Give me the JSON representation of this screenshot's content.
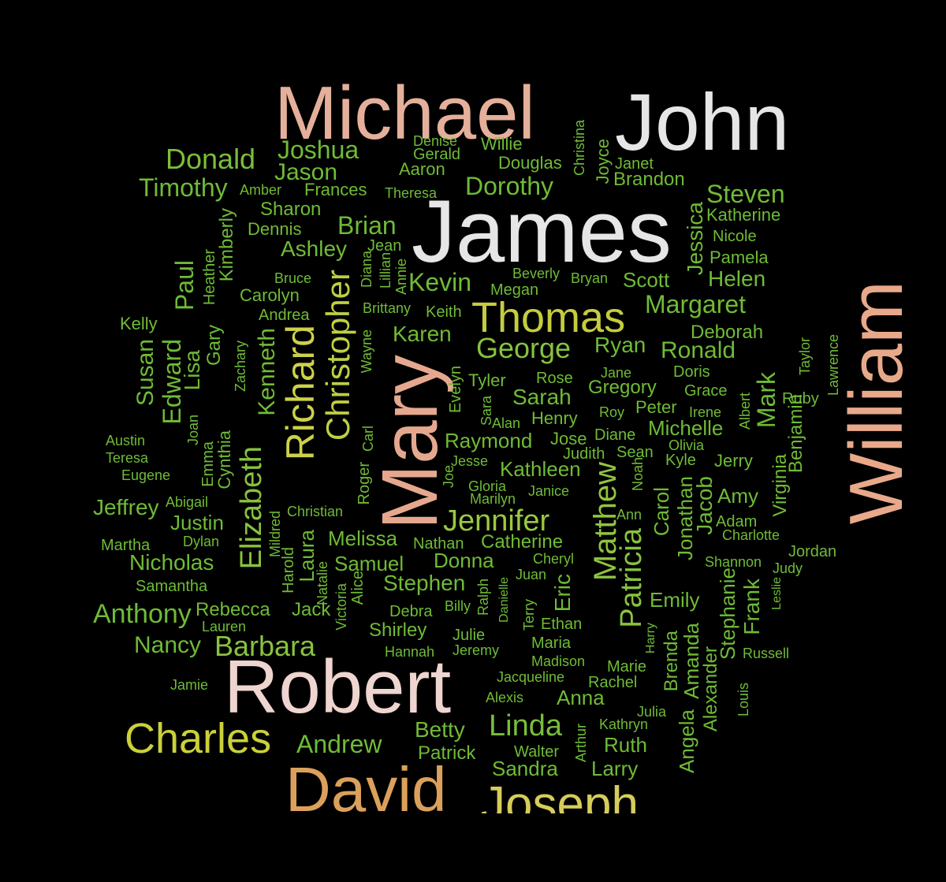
{
  "words": [
    {
      "text": "Michael",
      "color": "#e5b09b"
    },
    {
      "text": "John",
      "color": "#e6e6e6"
    },
    {
      "text": "James",
      "color": "#e6e6e6"
    },
    {
      "text": "William",
      "color": "#e8a98a"
    },
    {
      "text": "Mary",
      "color": "#e5a88f"
    },
    {
      "text": "Robert",
      "color": "#eed5cf"
    },
    {
      "text": "David",
      "color": "#dba05b"
    },
    {
      "text": "Joseph",
      "color": "#d6cc5a"
    },
    {
      "text": "Charles",
      "color": "#cbd03a"
    },
    {
      "text": "Thomas",
      "color": "#c5cc3f"
    },
    {
      "text": "Richard",
      "color": "#cdd14a"
    },
    {
      "text": "Christopher",
      "color": "#bfcf43"
    },
    {
      "text": "Jennifer",
      "color": "#9ac93f"
    },
    {
      "text": "Matthew",
      "color": "#91c43f"
    },
    {
      "text": "Patricia",
      "color": "#88c23f"
    },
    {
      "text": "Linda",
      "color": "#78be3a"
    },
    {
      "text": "Elizabeth",
      "color": "#88c23f"
    },
    {
      "text": "Barbara",
      "color": "#88c23f"
    },
    {
      "text": "George",
      "color": "#86c23f"
    },
    {
      "text": "Donald",
      "color": "#7abe3a"
    },
    {
      "text": "Joshua",
      "color": "#6fbb36"
    },
    {
      "text": "Jason",
      "color": "#6fbb36"
    },
    {
      "text": "Timothy",
      "color": "#6fbb36"
    },
    {
      "text": "Dorothy",
      "color": "#6fbb36"
    },
    {
      "text": "Steven",
      "color": "#6fbb36"
    },
    {
      "text": "Brian",
      "color": "#6fbb36"
    },
    {
      "text": "Kevin",
      "color": "#6fbb36"
    },
    {
      "text": "Margaret",
      "color": "#6fbb36"
    },
    {
      "text": "Ronald",
      "color": "#6fbb36"
    },
    {
      "text": "Mark",
      "color": "#6fbb36"
    },
    {
      "text": "Kenneth",
      "color": "#6fbb36"
    },
    {
      "text": "Paul",
      "color": "#6fbb36"
    },
    {
      "text": "Edward",
      "color": "#6fbb36"
    },
    {
      "text": "Susan",
      "color": "#6fbb36"
    },
    {
      "text": "Lisa",
      "color": "#6fbb36"
    },
    {
      "text": "Jeffrey",
      "color": "#6fbb36"
    },
    {
      "text": "Anthony",
      "color": "#6fbb36"
    },
    {
      "text": "Nicholas",
      "color": "#6fbb36"
    },
    {
      "text": "Nancy",
      "color": "#6fbb36"
    },
    {
      "text": "Andrew",
      "color": "#6fbb36"
    },
    {
      "text": "Sarah",
      "color": "#6fbb36"
    },
    {
      "text": "Karen",
      "color": "#6fbb36"
    },
    {
      "text": "Helen",
      "color": "#6fbb36"
    },
    {
      "text": "Scott",
      "color": "#6fbb36"
    },
    {
      "text": "Ryan",
      "color": "#6fbb36"
    },
    {
      "text": "Jessica",
      "color": "#6fbb36"
    },
    {
      "text": "Michelle",
      "color": "#6fbb36"
    },
    {
      "text": "Gregory",
      "color": "#6fbb36"
    },
    {
      "text": "Raymond",
      "color": "#6fbb36"
    },
    {
      "text": "Kathleen",
      "color": "#6fbb36"
    },
    {
      "text": "Melissa",
      "color": "#6fbb36"
    },
    {
      "text": "Samuel",
      "color": "#6fbb36"
    },
    {
      "text": "Donna",
      "color": "#6fbb36"
    },
    {
      "text": "Catherine",
      "color": "#6fbb36"
    },
    {
      "text": "Stephen",
      "color": "#6fbb36"
    },
    {
      "text": "Rebecca",
      "color": "#6fbb36"
    },
    {
      "text": "Jack",
      "color": "#6fbb36"
    },
    {
      "text": "Shirley",
      "color": "#6fbb36"
    },
    {
      "text": "Eric",
      "color": "#6fbb36"
    },
    {
      "text": "Emily",
      "color": "#6fbb36"
    },
    {
      "text": "Frank",
      "color": "#6fbb36"
    },
    {
      "text": "Stephanie",
      "color": "#6fbb36"
    },
    {
      "text": "Jonathan",
      "color": "#6fbb36"
    },
    {
      "text": "Jacob",
      "color": "#6fbb36"
    },
    {
      "text": "Amy",
      "color": "#6fbb36"
    },
    {
      "text": "Carol",
      "color": "#6fbb36"
    },
    {
      "text": "Benjamin",
      "color": "#6fbb36"
    },
    {
      "text": "Virginia",
      "color": "#6fbb36"
    },
    {
      "text": "Anna",
      "color": "#6fbb36"
    },
    {
      "text": "Betty",
      "color": "#6fbb36"
    },
    {
      "text": "Ruth",
      "color": "#6fbb36"
    },
    {
      "text": "Larry",
      "color": "#6fbb36"
    },
    {
      "text": "Sandra",
      "color": "#6fbb36"
    },
    {
      "text": "Patrick",
      "color": "#6fbb36"
    },
    {
      "text": "Angela",
      "color": "#6fbb36"
    },
    {
      "text": "Amanda",
      "color": "#6fbb36"
    },
    {
      "text": "Alexander",
      "color": "#6fbb36"
    },
    {
      "text": "Brenda",
      "color": "#6fbb36"
    },
    {
      "text": "Laura",
      "color": "#6fbb36"
    },
    {
      "text": "Justin",
      "color": "#6fbb36"
    },
    {
      "text": "Deborah",
      "color": "#6fbb36"
    },
    {
      "text": "Ashley",
      "color": "#6fbb36"
    },
    {
      "text": "Sharon",
      "color": "#6fbb36"
    },
    {
      "text": "Kimberly",
      "color": "#6fbb36"
    },
    {
      "text": "Cynthia",
      "color": "#6fbb36"
    },
    {
      "text": "Gary",
      "color": "#6fbb36"
    },
    {
      "text": "Brandon",
      "color": "#6fbb36"
    },
    {
      "text": "Douglas",
      "color": "#6fbb36"
    },
    {
      "text": "Frances",
      "color": "#6fbb36"
    },
    {
      "text": "Willie",
      "color": "#6fbb36"
    },
    {
      "text": "Aaron",
      "color": "#6fbb36"
    },
    {
      "text": "Denise",
      "color": "#6fbb36"
    },
    {
      "text": "Gerald",
      "color": "#6fbb36"
    },
    {
      "text": "Christina",
      "color": "#6fbb36"
    },
    {
      "text": "Joyce",
      "color": "#6fbb36"
    },
    {
      "text": "Janet",
      "color": "#6fbb36"
    },
    {
      "text": "Amber",
      "color": "#6fbb36"
    },
    {
      "text": "Theresa",
      "color": "#6fbb36"
    },
    {
      "text": "Katherine",
      "color": "#6fbb36"
    },
    {
      "text": "Nicole",
      "color": "#6fbb36"
    },
    {
      "text": "Pamela",
      "color": "#6fbb36"
    },
    {
      "text": "Dennis",
      "color": "#6fbb36"
    },
    {
      "text": "Jean",
      "color": "#6fbb36"
    },
    {
      "text": "Diana",
      "color": "#6fbb36"
    },
    {
      "text": "Lillian",
      "color": "#6fbb36"
    },
    {
      "text": "Annie",
      "color": "#6fbb36"
    },
    {
      "text": "Heather",
      "color": "#6fbb36"
    },
    {
      "text": "Bruce",
      "color": "#6fbb36"
    },
    {
      "text": "Carolyn",
      "color": "#6fbb36"
    },
    {
      "text": "Beverly",
      "color": "#6fbb36"
    },
    {
      "text": "Bryan",
      "color": "#6fbb36"
    },
    {
      "text": "Megan",
      "color": "#6fbb36"
    },
    {
      "text": "Brittany",
      "color": "#6fbb36"
    },
    {
      "text": "Keith",
      "color": "#6fbb36"
    },
    {
      "text": "Andrea",
      "color": "#6fbb36"
    },
    {
      "text": "Kelly",
      "color": "#6fbb36"
    },
    {
      "text": "Zachary",
      "color": "#6fbb36"
    },
    {
      "text": "Wayne",
      "color": "#6fbb36"
    },
    {
      "text": "Doris",
      "color": "#6fbb36"
    },
    {
      "text": "Jane",
      "color": "#6fbb36"
    },
    {
      "text": "Rose",
      "color": "#6fbb36"
    },
    {
      "text": "Tyler",
      "color": "#6fbb36"
    },
    {
      "text": "Taylor",
      "color": "#6fbb36"
    },
    {
      "text": "Lawrence",
      "color": "#6fbb36"
    },
    {
      "text": "Grace",
      "color": "#6fbb36"
    },
    {
      "text": "Ruby",
      "color": "#6fbb36"
    },
    {
      "text": "Albert",
      "color": "#6fbb36"
    },
    {
      "text": "Irene",
      "color": "#6fbb36"
    },
    {
      "text": "Peter",
      "color": "#6fbb36"
    },
    {
      "text": "Roy",
      "color": "#6fbb36"
    },
    {
      "text": "Evelyn",
      "color": "#6fbb36"
    },
    {
      "text": "Sara",
      "color": "#6fbb36"
    },
    {
      "text": "Alan",
      "color": "#6fbb36"
    },
    {
      "text": "Henry",
      "color": "#6fbb36"
    },
    {
      "text": "Jose",
      "color": "#6fbb36"
    },
    {
      "text": "Diane",
      "color": "#6fbb36"
    },
    {
      "text": "Olivia",
      "color": "#6fbb36"
    },
    {
      "text": "Kyle",
      "color": "#6fbb36"
    },
    {
      "text": "Jerry",
      "color": "#6fbb36"
    },
    {
      "text": "Sean",
      "color": "#6fbb36"
    },
    {
      "text": "Judith",
      "color": "#6fbb36"
    },
    {
      "text": "Noah",
      "color": "#6fbb36"
    },
    {
      "text": "Carl",
      "color": "#6fbb36"
    },
    {
      "text": "Roger",
      "color": "#6fbb36"
    },
    {
      "text": "Joan",
      "color": "#6fbb36"
    },
    {
      "text": "Emma",
      "color": "#6fbb36"
    },
    {
      "text": "Austin",
      "color": "#6fbb36"
    },
    {
      "text": "Teresa",
      "color": "#6fbb36"
    },
    {
      "text": "Eugene",
      "color": "#6fbb36"
    },
    {
      "text": "Jesse",
      "color": "#6fbb36"
    },
    {
      "text": "Joe",
      "color": "#6fbb36"
    },
    {
      "text": "Gloria",
      "color": "#6fbb36"
    },
    {
      "text": "Marilyn",
      "color": "#6fbb36"
    },
    {
      "text": "Janice",
      "color": "#6fbb36"
    },
    {
      "text": "Abigail",
      "color": "#6fbb36"
    },
    {
      "text": "Christian",
      "color": "#6fbb36"
    },
    {
      "text": "Mildred",
      "color": "#6fbb36"
    },
    {
      "text": "Dylan",
      "color": "#6fbb36"
    },
    {
      "text": "Martha",
      "color": "#6fbb36"
    },
    {
      "text": "Harold",
      "color": "#6fbb36"
    },
    {
      "text": "Nathan",
      "color": "#6fbb36"
    },
    {
      "text": "Ann",
      "color": "#6fbb36"
    },
    {
      "text": "Adam",
      "color": "#6fbb36"
    },
    {
      "text": "Charlotte",
      "color": "#6fbb36"
    },
    {
      "text": "Jordan",
      "color": "#6fbb36"
    },
    {
      "text": "Shannon",
      "color": "#6fbb36"
    },
    {
      "text": "Judy",
      "color": "#6fbb36"
    },
    {
      "text": "Cheryl",
      "color": "#6fbb36"
    },
    {
      "text": "Juan",
      "color": "#6fbb36"
    },
    {
      "text": "Samantha",
      "color": "#6fbb36"
    },
    {
      "text": "Natalie",
      "color": "#6fbb36"
    },
    {
      "text": "Alice",
      "color": "#6fbb36"
    },
    {
      "text": "Victoria",
      "color": "#6fbb36"
    },
    {
      "text": "Danielle",
      "color": "#6fbb36"
    },
    {
      "text": "Ralph",
      "color": "#6fbb36"
    },
    {
      "text": "Terry",
      "color": "#6fbb36"
    },
    {
      "text": "Leslie",
      "color": "#6fbb36"
    },
    {
      "text": "Lauren",
      "color": "#6fbb36"
    },
    {
      "text": "Debra",
      "color": "#6fbb36"
    },
    {
      "text": "Billy",
      "color": "#6fbb36"
    },
    {
      "text": "Ethan",
      "color": "#6fbb36"
    },
    {
      "text": "Julie",
      "color": "#6fbb36"
    },
    {
      "text": "Maria",
      "color": "#6fbb36"
    },
    {
      "text": "Harry",
      "color": "#6fbb36"
    },
    {
      "text": "Hannah",
      "color": "#6fbb36"
    },
    {
      "text": "Jeremy",
      "color": "#6fbb36"
    },
    {
      "text": "Madison",
      "color": "#6fbb36"
    },
    {
      "text": "Marie",
      "color": "#6fbb36"
    },
    {
      "text": "Russell",
      "color": "#6fbb36"
    },
    {
      "text": "Jacqueline",
      "color": "#6fbb36"
    },
    {
      "text": "Rachel",
      "color": "#6fbb36"
    },
    {
      "text": "Jamie",
      "color": "#6fbb36"
    },
    {
      "text": "Alexis",
      "color": "#6fbb36"
    },
    {
      "text": "Louis",
      "color": "#6fbb36"
    },
    {
      "text": "Julia",
      "color": "#6fbb36"
    },
    {
      "text": "Kathryn",
      "color": "#6fbb36"
    },
    {
      "text": "Arthur",
      "color": "#6fbb36"
    },
    {
      "text": "Walter",
      "color": "#6fbb36"
    }
  ]
}
